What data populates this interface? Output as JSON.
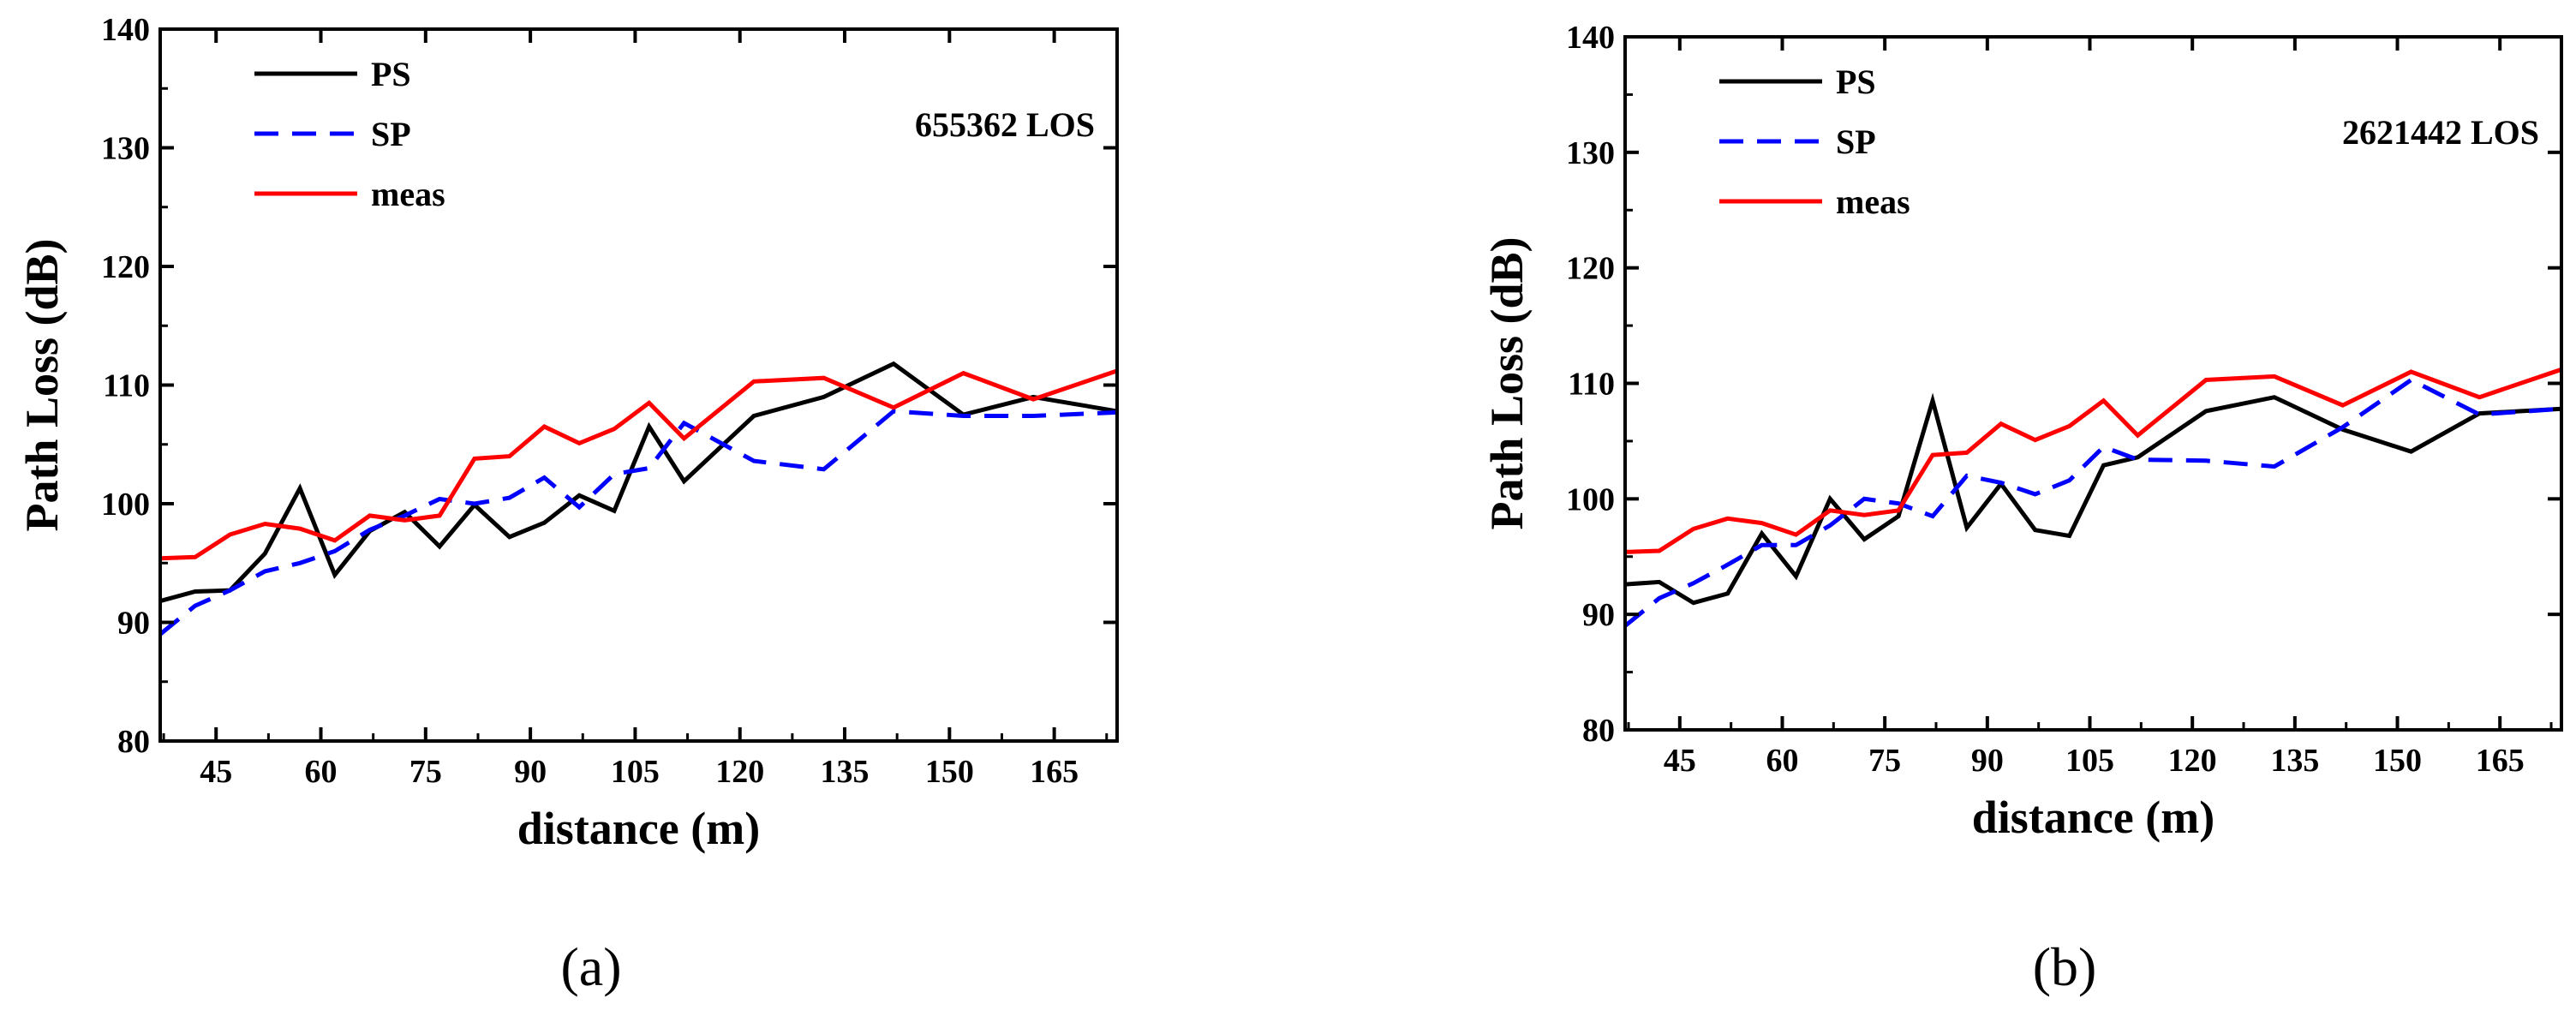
{
  "chart_data": [
    {
      "type": "line",
      "panel": "(a)",
      "annotation": "655362  LOS",
      "xlabel": "distance (m)",
      "ylabel": "Path Loss (dB)",
      "xlim": [
        37,
        174
      ],
      "ylim": [
        80,
        140
      ],
      "xticks": [
        45,
        60,
        75,
        90,
        105,
        120,
        135,
        150,
        165
      ],
      "yticks": [
        80,
        90,
        100,
        110,
        120,
        130,
        140
      ],
      "legend": [
        "PS",
        "SP",
        "meas"
      ],
      "series": [
        {
          "name": "PS",
          "color": "#000000",
          "dash": "solid",
          "x": [
            37,
            42,
            47,
            52,
            57,
            62,
            67,
            72,
            77,
            82,
            87,
            92,
            97,
            102,
            107,
            112,
            122,
            132,
            142,
            152,
            162,
            174
          ],
          "y": [
            91.8,
            92.6,
            92.7,
            95.8,
            101.3,
            94.0,
            97.7,
            99.3,
            96.4,
            99.9,
            97.2,
            98.4,
            100.7,
            99.4,
            106.5,
            101.9,
            107.4,
            109.0,
            111.8,
            107.5,
            109.0,
            107.8
          ]
        },
        {
          "name": "SP",
          "color": "#0000ff",
          "dash": "dashed",
          "x": [
            37,
            42,
            47,
            52,
            57,
            62,
            67,
            72,
            77,
            82,
            87,
            92,
            97,
            102,
            107,
            112,
            122,
            132,
            142,
            152,
            162,
            174
          ],
          "y": [
            89.0,
            91.4,
            92.7,
            94.3,
            95.0,
            96.0,
            97.8,
            99.0,
            100.4,
            100.0,
            100.5,
            102.2,
            99.7,
            102.5,
            103.0,
            106.8,
            103.6,
            102.9,
            107.8,
            107.4,
            107.4,
            107.7
          ]
        },
        {
          "name": "meas",
          "color": "#ff0000",
          "dash": "solid",
          "x": [
            37,
            42,
            47,
            52,
            57,
            62,
            67,
            72,
            77,
            82,
            87,
            92,
            97,
            102,
            107,
            112,
            122,
            132,
            142,
            152,
            162,
            174
          ],
          "y": [
            95.4,
            95.5,
            97.4,
            98.3,
            97.9,
            96.9,
            99.0,
            98.6,
            99.0,
            103.8,
            104.0,
            106.5,
            105.1,
            106.3,
            108.5,
            105.5,
            110.3,
            110.6,
            108.1,
            111.0,
            108.8,
            111.2
          ]
        }
      ]
    },
    {
      "type": "line",
      "panel": "(b)",
      "annotation": "2621442  LOS",
      "xlabel": "distance (m)",
      "ylabel": "Path Loss (dB)",
      "xlim": [
        37,
        174
      ],
      "ylim": [
        80,
        140
      ],
      "xticks": [
        45,
        60,
        75,
        90,
        105,
        120,
        135,
        150,
        165
      ],
      "yticks": [
        80,
        90,
        100,
        110,
        120,
        130,
        140
      ],
      "legend": [
        "PS",
        "SP",
        "meas"
      ],
      "series": [
        {
          "name": "PS",
          "color": "#000000",
          "dash": "solid",
          "x": [
            37,
            42,
            47,
            52,
            57,
            62,
            67,
            72,
            77,
            82,
            87,
            92,
            97,
            102,
            107,
            112,
            122,
            132,
            142,
            152,
            162,
            174
          ],
          "y": [
            92.6,
            92.8,
            91.0,
            91.8,
            97.0,
            93.3,
            100.0,
            96.5,
            98.5,
            108.5,
            97.5,
            101.3,
            97.3,
            96.8,
            102.9,
            103.6,
            107.6,
            108.8,
            106.0,
            104.1,
            107.4,
            107.8
          ]
        },
        {
          "name": "SP",
          "color": "#0000ff",
          "dash": "dashed",
          "x": [
            37,
            42,
            47,
            52,
            57,
            62,
            67,
            72,
            77,
            82,
            87,
            92,
            97,
            102,
            107,
            112,
            122,
            132,
            142,
            152,
            162,
            174
          ],
          "y": [
            89.0,
            91.4,
            92.7,
            94.3,
            96.0,
            96.0,
            97.7,
            100.0,
            99.6,
            98.5,
            102.0,
            101.4,
            100.4,
            101.6,
            104.5,
            103.4,
            103.3,
            102.8,
            106.2,
            110.3,
            107.3,
            107.8
          ]
        },
        {
          "name": "meas",
          "color": "#ff0000",
          "dash": "solid",
          "x": [
            37,
            42,
            47,
            52,
            57,
            62,
            67,
            72,
            77,
            82,
            87,
            92,
            97,
            102,
            107,
            112,
            122,
            132,
            142,
            152,
            162,
            174
          ],
          "y": [
            95.4,
            95.5,
            97.4,
            98.3,
            97.9,
            96.9,
            99.0,
            98.6,
            99.0,
            103.8,
            104.0,
            106.5,
            105.1,
            106.3,
            108.5,
            105.5,
            110.3,
            110.6,
            108.1,
            111.0,
            108.8,
            111.2
          ]
        }
      ]
    }
  ]
}
